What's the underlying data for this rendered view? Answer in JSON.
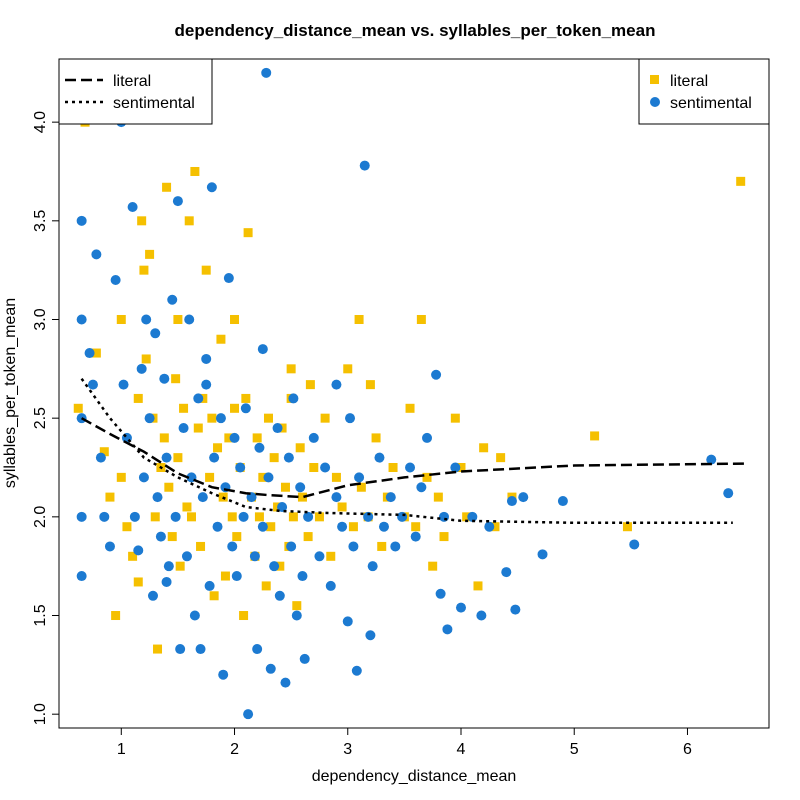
{
  "chart_data": {
    "type": "scatter",
    "title": "dependency_distance_mean vs. syllables_per_token_mean",
    "xlabel": "dependency_distance_mean",
    "ylabel": "syllables_per_token_mean",
    "xlim": [
      0.45,
      6.72
    ],
    "ylim": [
      0.93,
      4.32
    ],
    "x_ticks": [
      1,
      2,
      3,
      4,
      5,
      6
    ],
    "x_tick_labels": [
      "1",
      "2",
      "3",
      "4",
      "5",
      "6"
    ],
    "y_ticks": [
      1.0,
      1.5,
      2.0,
      2.5,
      3.0,
      3.5,
      4.0
    ],
    "y_tick_labels": [
      "1.0",
      "1.5",
      "2.0",
      "2.5",
      "3.0",
      "3.5",
      "4.0"
    ],
    "grid": false,
    "series": [
      {
        "name": "literal",
        "marker": "square",
        "color": "#F5C000",
        "points": [
          [
            0.68,
            4.0
          ],
          [
            0.62,
            2.55
          ],
          [
            0.78,
            2.83
          ],
          [
            0.9,
            2.1
          ],
          [
            0.95,
            1.5
          ],
          [
            1.0,
            2.2
          ],
          [
            1.05,
            1.95
          ],
          [
            1.1,
            1.8
          ],
          [
            1.15,
            2.6
          ],
          [
            1.18,
            3.5
          ],
          [
            1.2,
            3.25
          ],
          [
            1.22,
            2.8
          ],
          [
            1.25,
            3.33
          ],
          [
            1.28,
            2.5
          ],
          [
            1.3,
            2.0
          ],
          [
            1.32,
            1.33
          ],
          [
            1.35,
            2.25
          ],
          [
            1.38,
            2.4
          ],
          [
            1.4,
            3.67
          ],
          [
            1.42,
            2.15
          ],
          [
            1.45,
            1.9
          ],
          [
            1.48,
            2.7
          ],
          [
            1.5,
            2.3
          ],
          [
            1.52,
            1.75
          ],
          [
            1.55,
            2.55
          ],
          [
            1.58,
            2.05
          ],
          [
            1.6,
            3.5
          ],
          [
            1.62,
            2.0
          ],
          [
            1.65,
            3.75
          ],
          [
            1.68,
            2.45
          ],
          [
            1.7,
            1.85
          ],
          [
            1.72,
            2.6
          ],
          [
            1.75,
            3.25
          ],
          [
            1.78,
            2.2
          ],
          [
            1.8,
            2.5
          ],
          [
            1.82,
            1.6
          ],
          [
            1.85,
            2.35
          ],
          [
            1.88,
            2.9
          ],
          [
            1.9,
            2.1
          ],
          [
            1.92,
            1.7
          ],
          [
            1.95,
            2.4
          ],
          [
            1.98,
            2.0
          ],
          [
            2.0,
            2.55
          ],
          [
            2.02,
            1.9
          ],
          [
            2.05,
            2.25
          ],
          [
            2.08,
            1.5
          ],
          [
            2.1,
            2.6
          ],
          [
            2.12,
            3.44
          ],
          [
            2.15,
            2.1
          ],
          [
            2.18,
            1.8
          ],
          [
            2.2,
            2.4
          ],
          [
            2.22,
            2.0
          ],
          [
            2.25,
            2.2
          ],
          [
            2.28,
            1.65
          ],
          [
            2.3,
            2.5
          ],
          [
            2.32,
            1.95
          ],
          [
            2.35,
            2.3
          ],
          [
            2.38,
            2.05
          ],
          [
            2.4,
            1.75
          ],
          [
            2.42,
            2.45
          ],
          [
            2.45,
            2.15
          ],
          [
            2.48,
            1.85
          ],
          [
            2.5,
            2.6
          ],
          [
            2.52,
            2.0
          ],
          [
            2.55,
            1.55
          ],
          [
            2.58,
            2.35
          ],
          [
            2.6,
            2.1
          ],
          [
            2.65,
            1.9
          ],
          [
            2.7,
            2.25
          ],
          [
            2.75,
            2.0
          ],
          [
            2.8,
            2.5
          ],
          [
            2.85,
            1.8
          ],
          [
            2.9,
            2.2
          ],
          [
            2.95,
            2.05
          ],
          [
            3.0,
            2.75
          ],
          [
            3.05,
            1.95
          ],
          [
            3.1,
            3.0
          ],
          [
            3.12,
            2.15
          ],
          [
            3.18,
            2.0
          ],
          [
            3.25,
            2.4
          ],
          [
            3.3,
            1.85
          ],
          [
            3.35,
            2.1
          ],
          [
            3.4,
            2.25
          ],
          [
            3.5,
            2.0
          ],
          [
            3.55,
            2.55
          ],
          [
            3.6,
            1.95
          ],
          [
            3.65,
            3.0
          ],
          [
            3.7,
            2.2
          ],
          [
            3.8,
            2.1
          ],
          [
            3.85,
            1.9
          ],
          [
            3.95,
            2.5
          ],
          [
            4.0,
            2.25
          ],
          [
            4.05,
            2.0
          ],
          [
            4.15,
            1.65
          ],
          [
            4.2,
            2.35
          ],
          [
            4.3,
            1.95
          ],
          [
            4.35,
            2.3
          ],
          [
            4.45,
            2.1
          ],
          [
            5.18,
            2.41
          ],
          [
            5.47,
            1.95
          ],
          [
            6.47,
            3.7
          ],
          [
            2.67,
            2.67
          ],
          [
            1.0,
            3.0
          ],
          [
            1.5,
            3.0
          ],
          [
            2.0,
            3.0
          ],
          [
            2.5,
            2.75
          ],
          [
            0.85,
            2.33
          ],
          [
            1.15,
            1.67
          ],
          [
            3.2,
            2.67
          ],
          [
            3.75,
            1.75
          ]
        ]
      },
      {
        "name": "sentimental",
        "marker": "circle",
        "color": "#1C7AD1",
        "points": [
          [
            0.65,
            3.5
          ],
          [
            0.65,
            3.0
          ],
          [
            0.65,
            2.5
          ],
          [
            0.65,
            2.0
          ],
          [
            0.65,
            1.7
          ],
          [
            0.72,
            2.83
          ],
          [
            0.75,
            2.67
          ],
          [
            0.78,
            3.33
          ],
          [
            0.82,
            2.3
          ],
          [
            0.85,
            2.0
          ],
          [
            0.9,
            1.85
          ],
          [
            0.95,
            3.2
          ],
          [
            1.0,
            4.0
          ],
          [
            1.02,
            2.67
          ],
          [
            1.05,
            2.4
          ],
          [
            1.1,
            3.57
          ],
          [
            1.12,
            2.0
          ],
          [
            1.15,
            1.83
          ],
          [
            1.18,
            2.75
          ],
          [
            1.2,
            2.2
          ],
          [
            1.22,
            3.0
          ],
          [
            1.25,
            2.5
          ],
          [
            1.28,
            1.6
          ],
          [
            1.3,
            2.93
          ],
          [
            1.32,
            2.1
          ],
          [
            1.35,
            1.9
          ],
          [
            1.38,
            2.7
          ],
          [
            1.4,
            2.3
          ],
          [
            1.42,
            1.75
          ],
          [
            1.45,
            3.1
          ],
          [
            1.48,
            2.0
          ],
          [
            1.5,
            3.6
          ],
          [
            1.52,
            1.33
          ],
          [
            1.55,
            2.45
          ],
          [
            1.58,
            1.8
          ],
          [
            1.6,
            3.0
          ],
          [
            1.62,
            2.2
          ],
          [
            1.65,
            1.5
          ],
          [
            1.68,
            2.6
          ],
          [
            1.7,
            1.33
          ],
          [
            1.72,
            2.1
          ],
          [
            1.75,
            2.8
          ],
          [
            1.78,
            1.65
          ],
          [
            1.8,
            3.67
          ],
          [
            1.82,
            2.3
          ],
          [
            1.85,
            1.95
          ],
          [
            1.88,
            2.5
          ],
          [
            1.9,
            1.2
          ],
          [
            1.92,
            2.15
          ],
          [
            1.95,
            3.21
          ],
          [
            1.98,
            1.85
          ],
          [
            2.0,
            2.4
          ],
          [
            2.02,
            1.7
          ],
          [
            2.05,
            2.25
          ],
          [
            2.08,
            2.0
          ],
          [
            2.1,
            2.55
          ],
          [
            2.12,
            1.0
          ],
          [
            2.15,
            2.1
          ],
          [
            2.18,
            1.8
          ],
          [
            2.2,
            1.33
          ],
          [
            2.22,
            2.35
          ],
          [
            2.25,
            1.95
          ],
          [
            2.28,
            4.25
          ],
          [
            2.3,
            2.2
          ],
          [
            2.32,
            1.23
          ],
          [
            2.35,
            1.75
          ],
          [
            2.38,
            2.45
          ],
          [
            2.4,
            1.6
          ],
          [
            2.42,
            2.05
          ],
          [
            2.45,
            1.16
          ],
          [
            2.48,
            2.3
          ],
          [
            2.5,
            1.85
          ],
          [
            2.52,
            2.6
          ],
          [
            2.55,
            1.5
          ],
          [
            2.58,
            2.15
          ],
          [
            2.6,
            1.7
          ],
          [
            2.62,
            1.28
          ],
          [
            2.65,
            2.0
          ],
          [
            2.7,
            2.4
          ],
          [
            2.75,
            1.8
          ],
          [
            2.8,
            2.25
          ],
          [
            2.85,
            1.65
          ],
          [
            2.9,
            2.1
          ],
          [
            2.95,
            1.95
          ],
          [
            3.0,
            1.47
          ],
          [
            3.02,
            2.5
          ],
          [
            3.05,
            1.85
          ],
          [
            3.08,
            1.22
          ],
          [
            3.1,
            2.2
          ],
          [
            3.15,
            3.78
          ],
          [
            3.18,
            2.0
          ],
          [
            3.22,
            1.75
          ],
          [
            3.28,
            2.3
          ],
          [
            3.32,
            1.95
          ],
          [
            3.38,
            2.1
          ],
          [
            3.42,
            1.85
          ],
          [
            3.48,
            2.0
          ],
          [
            3.55,
            2.25
          ],
          [
            3.6,
            1.9
          ],
          [
            3.65,
            2.15
          ],
          [
            3.7,
            2.4
          ],
          [
            3.78,
            2.72
          ],
          [
            3.82,
            1.61
          ],
          [
            3.85,
            2.0
          ],
          [
            3.88,
            1.43
          ],
          [
            3.95,
            2.25
          ],
          [
            4.0,
            1.54
          ],
          [
            4.1,
            2.0
          ],
          [
            4.18,
            1.5
          ],
          [
            4.25,
            1.95
          ],
          [
            4.4,
            1.72
          ],
          [
            4.45,
            2.08
          ],
          [
            4.48,
            1.53
          ],
          [
            4.55,
            2.1
          ],
          [
            4.72,
            1.81
          ],
          [
            4.9,
            2.08
          ],
          [
            5.53,
            1.86
          ],
          [
            6.21,
            2.29
          ],
          [
            6.36,
            2.12
          ],
          [
            1.75,
            2.67
          ],
          [
            2.25,
            2.85
          ],
          [
            1.4,
            1.67
          ],
          [
            2.9,
            2.67
          ],
          [
            3.2,
            1.4
          ]
        ]
      }
    ],
    "trend_lines": [
      {
        "name": "literal",
        "style": "dashed",
        "points": [
          [
            0.65,
            2.5
          ],
          [
            0.9,
            2.42
          ],
          [
            1.2,
            2.33
          ],
          [
            1.5,
            2.22
          ],
          [
            1.8,
            2.15
          ],
          [
            2.1,
            2.12
          ],
          [
            2.3,
            2.11
          ],
          [
            2.6,
            2.1
          ],
          [
            3.0,
            2.16
          ],
          [
            3.5,
            2.2
          ],
          [
            4.0,
            2.23
          ],
          [
            5.0,
            2.26
          ],
          [
            6.5,
            2.27
          ]
        ]
      },
      {
        "name": "sentimental",
        "style": "dotted",
        "points": [
          [
            0.65,
            2.7
          ],
          [
            0.9,
            2.5
          ],
          [
            1.2,
            2.3
          ],
          [
            1.5,
            2.2
          ],
          [
            1.8,
            2.12
          ],
          [
            2.1,
            2.05
          ],
          [
            2.4,
            2.03
          ],
          [
            2.8,
            2.02
          ],
          [
            3.5,
            2.01
          ],
          [
            4.0,
            1.98
          ],
          [
            5.0,
            1.97
          ],
          [
            6.4,
            1.97
          ]
        ]
      }
    ],
    "legends": [
      {
        "placement": "top-left",
        "entries": [
          {
            "label": "literal",
            "style": "dashed"
          },
          {
            "label": "sentimental",
            "style": "dotted"
          }
        ]
      },
      {
        "placement": "top-right",
        "entries": [
          {
            "label": "literal",
            "marker": "square",
            "color": "#F5C000"
          },
          {
            "label": "sentimental",
            "marker": "circle",
            "color": "#1C7AD1"
          }
        ]
      }
    ]
  }
}
